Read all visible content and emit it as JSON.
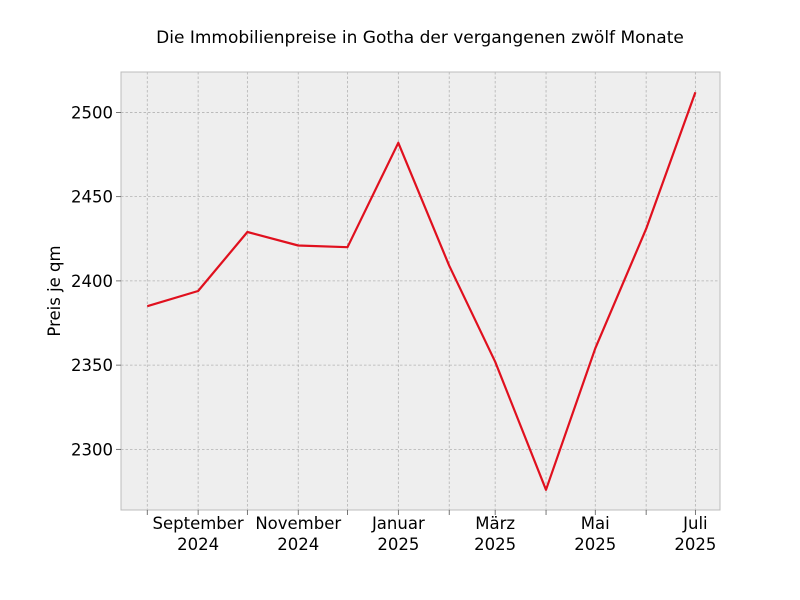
{
  "chart_data": {
    "type": "line",
    "title": "Die Immobilienpreise in Gotha der vergangenen zwölf Monate",
    "xlabel": "",
    "ylabel": "Preis je qm",
    "x": [
      "2024-08",
      "2024-09",
      "2024-10",
      "2024-11",
      "2024-12",
      "2025-01",
      "2025-02",
      "2025-03",
      "2025-04",
      "2025-05",
      "2025-06",
      "2025-07"
    ],
    "x_ticks": [
      {
        "x": "2024-09",
        "label": [
          "September",
          "2024"
        ]
      },
      {
        "x": "2024-11",
        "label": [
          "November",
          "2024"
        ]
      },
      {
        "x": "2025-01",
        "label": [
          "Januar",
          "2025"
        ]
      },
      {
        "x": "2025-03",
        "label": [
          "März",
          "2025"
        ]
      },
      {
        "x": "2025-05",
        "label": [
          "Mai",
          "2025"
        ]
      },
      {
        "x": "2025-07",
        "label": [
          "Juli",
          "2025"
        ]
      }
    ],
    "x_minor_ticks": [
      "2024-08",
      "2024-10",
      "2024-12",
      "2025-02",
      "2025-04",
      "2025-06"
    ],
    "series": [
      {
        "values": [
          2385,
          2394,
          2429,
          2421,
          2420,
          2482,
          2409,
          2352,
          2276,
          2360,
          2431,
          2512
        ],
        "color": "#e0101e"
      }
    ],
    "xlim": [
      "2024-07-16",
      "2025-07-16"
    ],
    "ylim": [
      2264,
      2524
    ],
    "y_ticks": [
      2300,
      2350,
      2400,
      2450,
      2500
    ],
    "grid": true,
    "grid_style": "dashed",
    "background": "#eeeeee",
    "legend": "none"
  }
}
